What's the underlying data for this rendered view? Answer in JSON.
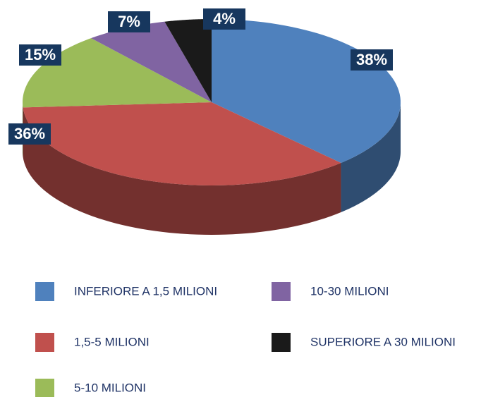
{
  "chart_data": {
    "type": "pie",
    "categories": [
      "INFERIORE A 1,5 MILIONI",
      "1,5-5 MILIONI",
      "5-10 MILIONI",
      "10-30 MILIONI",
      "SUPERIORE A 30 MILIONI"
    ],
    "values": [
      38,
      36,
      15,
      7,
      4
    ],
    "value_labels": [
      "38%",
      "36%",
      "15%",
      "7%",
      "4%"
    ],
    "colors": [
      "#4f81bd",
      "#c0504d",
      "#9bbb59",
      "#8064a2",
      "#1a1a1a"
    ]
  }
}
